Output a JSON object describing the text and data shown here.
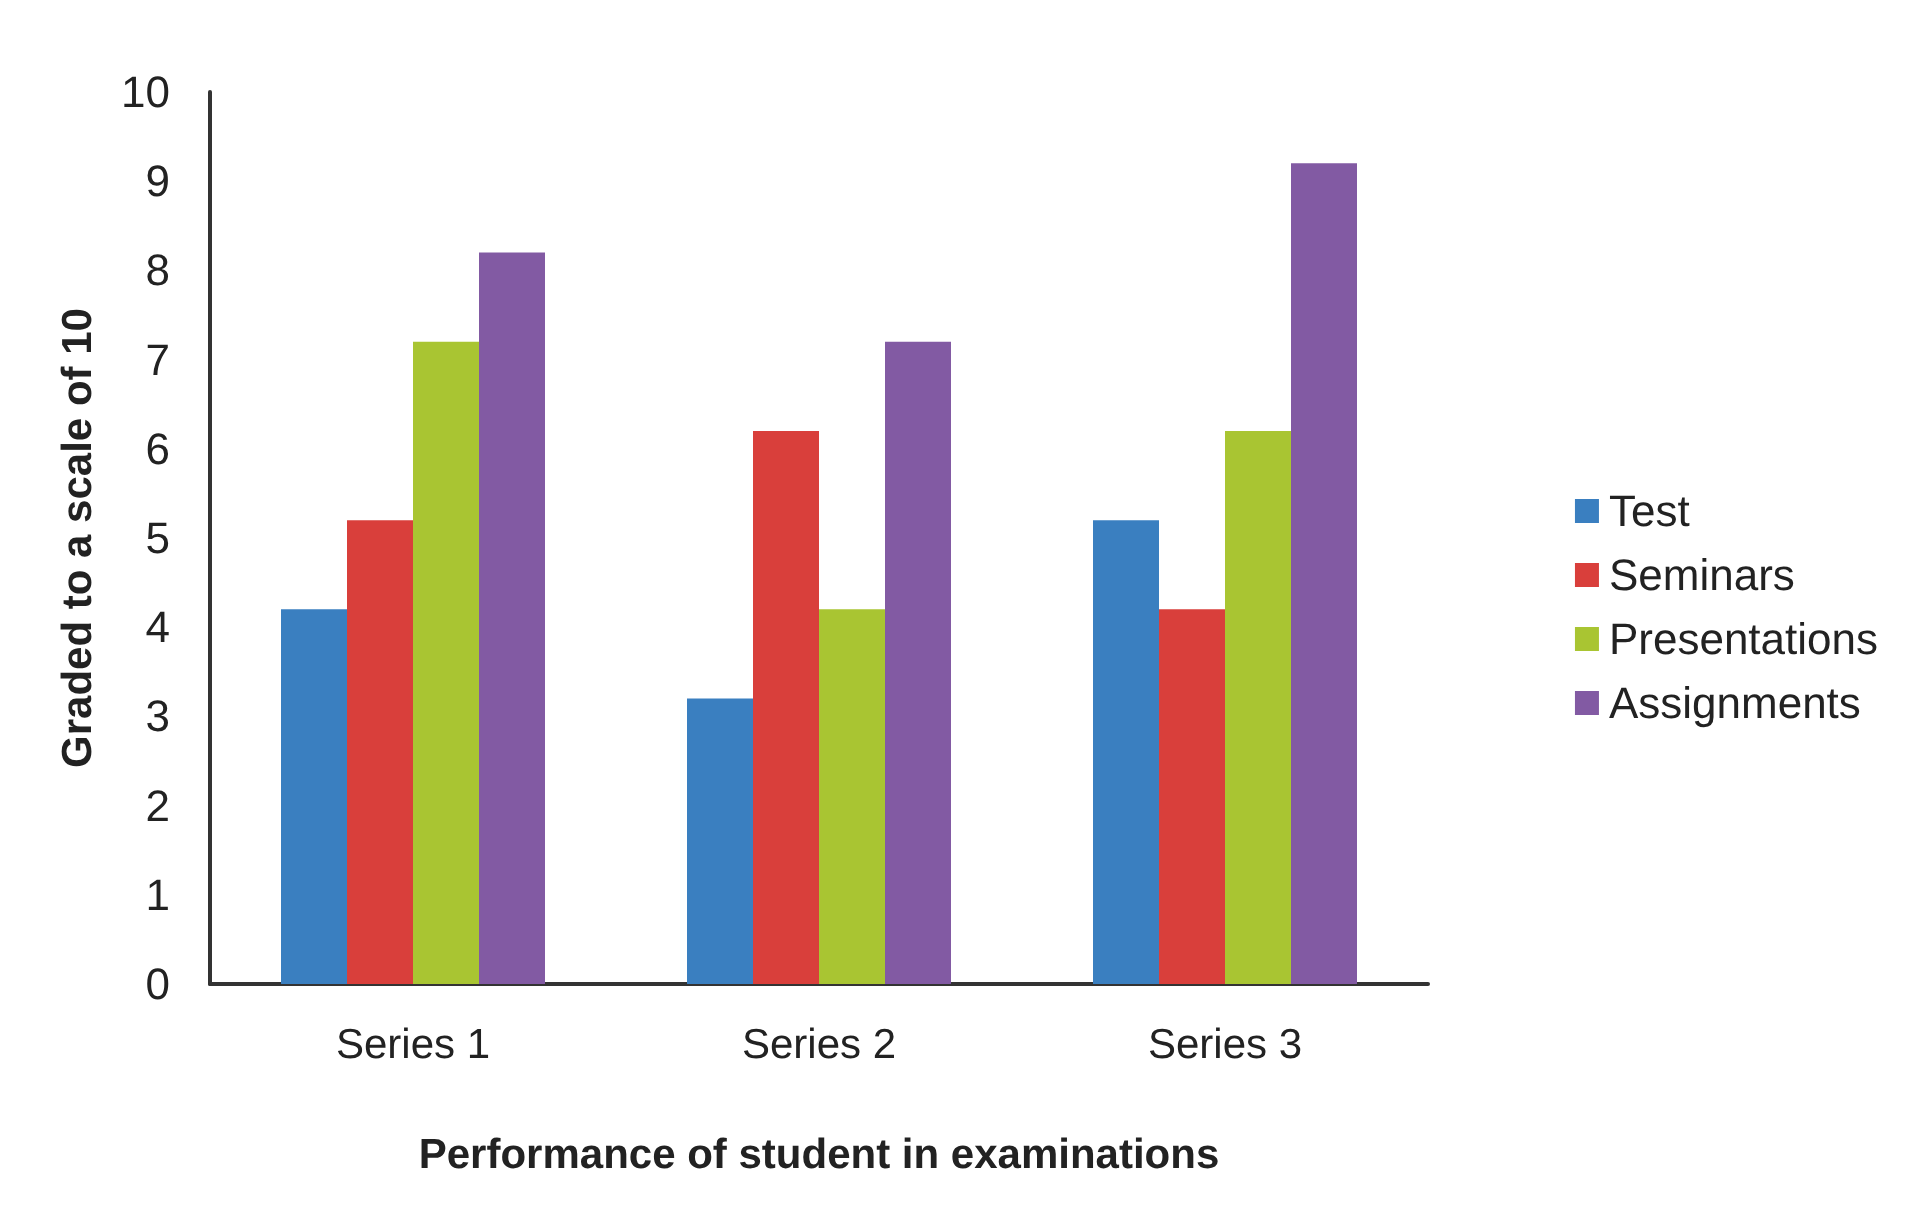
{
  "chart_data": {
    "type": "bar",
    "xlabel": "Performance of student in examinations",
    "ylabel": "Graded to a scale of 10",
    "categories": [
      "Series 1",
      "Series 2",
      "Series 3"
    ],
    "series": [
      {
        "name": "Test",
        "color": "#3a7fc0",
        "values": [
          4.2,
          3.2,
          5.2
        ]
      },
      {
        "name": "Seminars",
        "color": "#d93f3b",
        "values": [
          5.2,
          6.2,
          4.2
        ]
      },
      {
        "name": "Presentations",
        "color": "#a9c532",
        "values": [
          7.2,
          4.2,
          6.2
        ]
      },
      {
        "name": "Assignments",
        "color": "#825aa3",
        "values": [
          8.2,
          7.2,
          9.2
        ]
      }
    ],
    "ylim": [
      0,
      10
    ],
    "yticks": [
      0,
      1,
      2,
      3,
      4,
      5,
      6,
      7,
      8,
      9,
      10
    ],
    "grid": false,
    "legend": "right"
  }
}
